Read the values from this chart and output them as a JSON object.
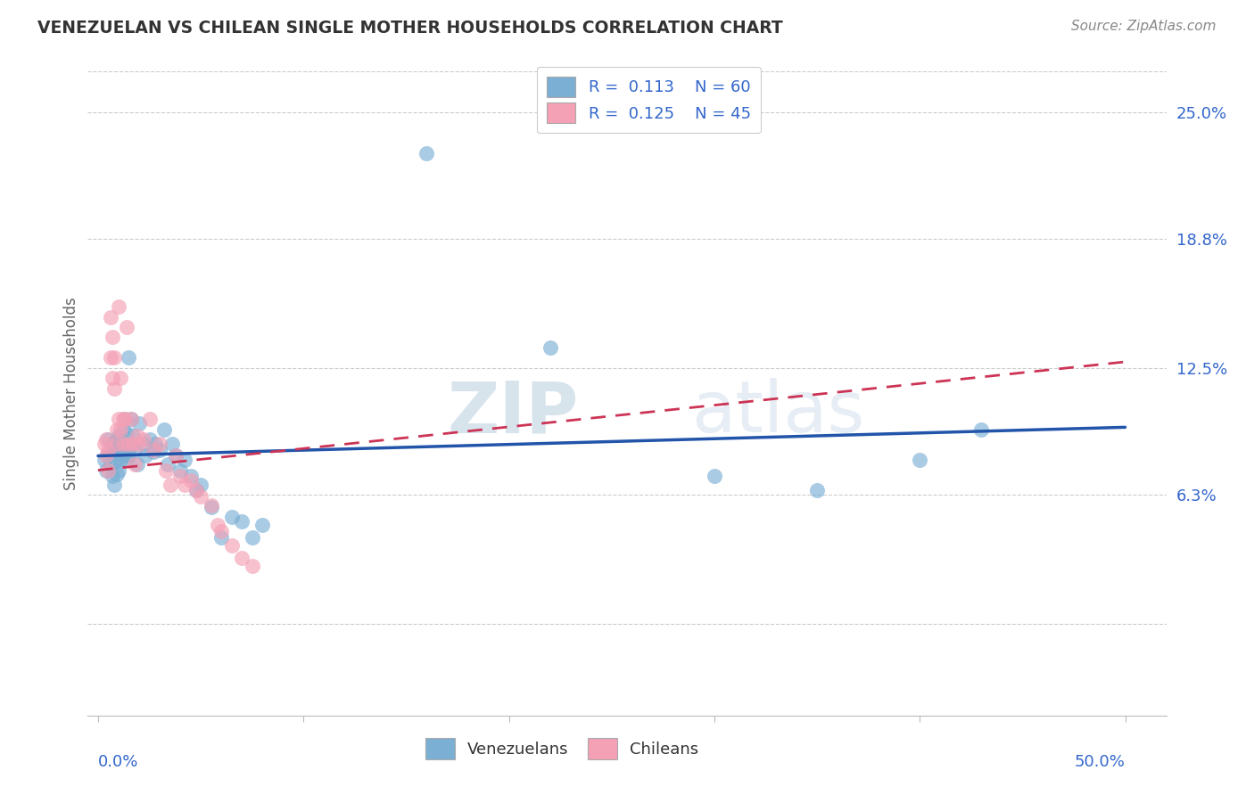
{
  "title": "VENEZUELAN VS CHILEAN SINGLE MOTHER HOUSEHOLDS CORRELATION CHART",
  "source": "Source: ZipAtlas.com",
  "ylabel": "Single Mother Households",
  "y_ticks": [
    0.0,
    0.063,
    0.125,
    0.188,
    0.25
  ],
  "y_tick_labels": [
    "",
    "6.3%",
    "12.5%",
    "18.8%",
    "25.0%"
  ],
  "xlim": [
    -0.005,
    0.52
  ],
  "ylim": [
    -0.045,
    0.27
  ],
  "legend_r_blue": "0.113",
  "legend_n_blue": "60",
  "legend_r_pink": "0.125",
  "legend_n_pink": "45",
  "blue_color": "#7BAFD4",
  "pink_color": "#F4A0B5",
  "blue_line_color": "#2255AA",
  "pink_line_color": "#CC3355",
  "watermark_zip": "ZIP",
  "watermark_atlas": "atlas",
  "background_color": "#FFFFFF",
  "venezuelan_x": [
    0.003,
    0.004,
    0.005,
    0.005,
    0.006,
    0.006,
    0.007,
    0.007,
    0.008,
    0.008,
    0.008,
    0.009,
    0.009,
    0.009,
    0.01,
    0.01,
    0.01,
    0.011,
    0.011,
    0.012,
    0.012,
    0.013,
    0.013,
    0.014,
    0.014,
    0.015,
    0.015,
    0.016,
    0.016,
    0.017,
    0.018,
    0.019,
    0.02,
    0.022,
    0.023,
    0.025,
    0.027,
    0.028,
    0.03,
    0.032,
    0.034,
    0.036,
    0.038,
    0.04,
    0.042,
    0.045,
    0.048,
    0.05,
    0.055,
    0.06,
    0.065,
    0.07,
    0.075,
    0.08,
    0.16,
    0.22,
    0.3,
    0.35,
    0.4,
    0.43
  ],
  "venezuelan_y": [
    0.08,
    0.075,
    0.09,
    0.082,
    0.085,
    0.078,
    0.088,
    0.072,
    0.086,
    0.079,
    0.068,
    0.09,
    0.083,
    0.073,
    0.092,
    0.085,
    0.075,
    0.088,
    0.08,
    0.095,
    0.082,
    0.1,
    0.087,
    0.093,
    0.08,
    0.13,
    0.082,
    0.1,
    0.087,
    0.092,
    0.085,
    0.078,
    0.098,
    0.088,
    0.082,
    0.09,
    0.084,
    0.088,
    0.085,
    0.095,
    0.078,
    0.088,
    0.082,
    0.075,
    0.08,
    0.072,
    0.065,
    0.068,
    0.057,
    0.042,
    0.052,
    0.05,
    0.042,
    0.048,
    0.23,
    0.135,
    0.072,
    0.065,
    0.08,
    0.095
  ],
  "chilean_x": [
    0.003,
    0.004,
    0.004,
    0.005,
    0.005,
    0.006,
    0.006,
    0.007,
    0.007,
    0.008,
    0.008,
    0.009,
    0.009,
    0.01,
    0.01,
    0.011,
    0.011,
    0.012,
    0.012,
    0.013,
    0.014,
    0.015,
    0.016,
    0.017,
    0.018,
    0.019,
    0.02,
    0.022,
    0.025,
    0.027,
    0.03,
    0.033,
    0.035,
    0.038,
    0.04,
    0.042,
    0.045,
    0.048,
    0.05,
    0.055,
    0.058,
    0.06,
    0.065,
    0.07,
    0.075
  ],
  "chilean_y": [
    0.088,
    0.082,
    0.09,
    0.085,
    0.075,
    0.15,
    0.13,
    0.14,
    0.12,
    0.13,
    0.115,
    0.095,
    0.088,
    0.155,
    0.1,
    0.12,
    0.095,
    0.1,
    0.088,
    0.1,
    0.145,
    0.088,
    0.1,
    0.088,
    0.078,
    0.092,
    0.088,
    0.09,
    0.1,
    0.085,
    0.088,
    0.075,
    0.068,
    0.082,
    0.072,
    0.068,
    0.07,
    0.065,
    0.062,
    0.058,
    0.048,
    0.045,
    0.038,
    0.032,
    0.028
  ],
  "ven_line_x": [
    0.0,
    0.5
  ],
  "ven_line_y": [
    0.082,
    0.096
  ],
  "chi_line_x": [
    0.0,
    0.5
  ],
  "chi_line_y": [
    0.075,
    0.128
  ]
}
